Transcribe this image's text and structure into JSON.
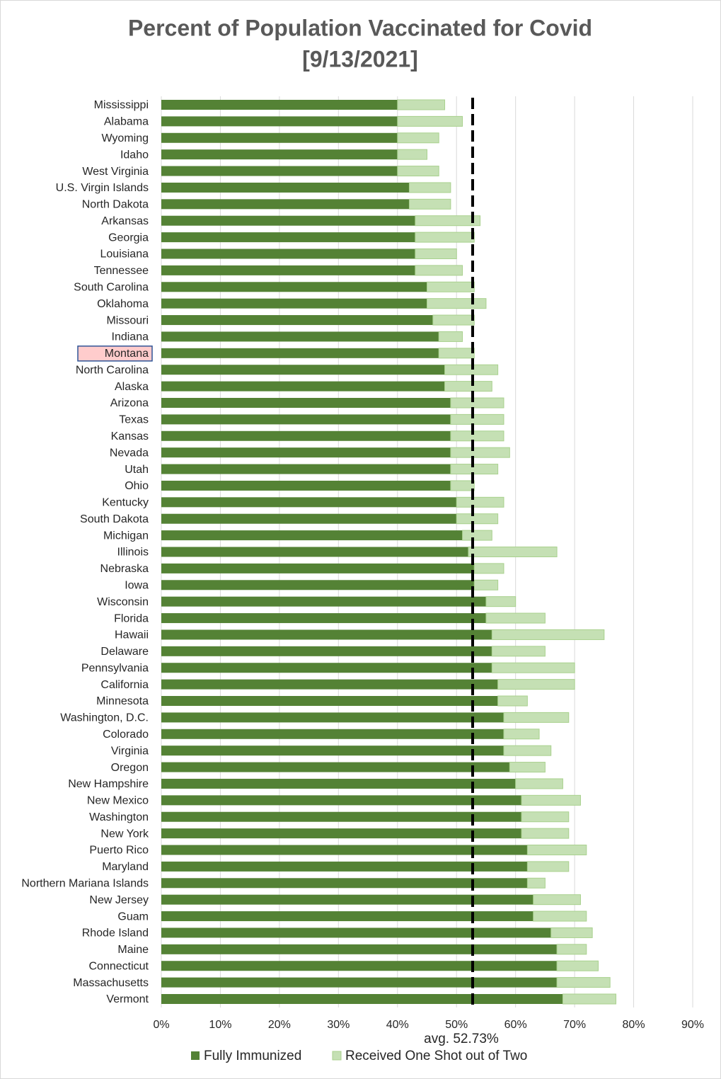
{
  "chart_data": {
    "type": "stacked_barh",
    "title": "Percent of Population Vaccinated for Covid",
    "subtitle": "[9/13/2021]",
    "categories": [
      "Mississippi",
      "Alabama",
      "Wyoming",
      "Idaho",
      "West Virginia",
      "U.S. Virgin Islands",
      "North Dakota",
      "Arkansas",
      "Georgia",
      "Louisiana",
      "Tennessee",
      "South Carolina",
      "Oklahoma",
      "Missouri",
      "Indiana",
      "Montana",
      "North Carolina",
      "Alaska",
      "Arizona",
      "Texas",
      "Kansas",
      "Nevada",
      "Utah",
      "Ohio",
      "Kentucky",
      "South Dakota",
      "Michigan",
      "Illinois",
      "Nebraska",
      "Iowa",
      "Wisconsin",
      "Florida",
      "Hawaii",
      "Delaware",
      "Pennsylvania",
      "California",
      "Minnesota",
      "Washington, D.C.",
      "Colorado",
      "Virginia",
      "Oregon",
      "New Hampshire",
      "New Mexico",
      "Washington",
      "New York",
      "Puerto Rico",
      "Maryland",
      "Northern Mariana Islands",
      "New Jersey",
      "Guam",
      "Rhode Island",
      "Maine",
      "Connecticut",
      "Massachusetts",
      "Vermont"
    ],
    "series": [
      {
        "name": "Fully Immunized",
        "color": "#548235",
        "values": [
          40,
          40,
          40,
          40,
          40,
          42,
          42,
          43,
          43,
          43,
          43,
          45,
          45,
          46,
          47,
          47,
          48,
          48,
          49,
          49,
          49,
          49,
          49,
          49,
          50,
          50,
          51,
          52,
          53,
          53,
          55,
          55,
          56,
          56,
          56,
          57,
          57,
          58,
          58,
          58,
          59,
          60,
          61,
          61,
          61,
          62,
          62,
          62,
          63,
          63,
          66,
          67,
          67,
          67,
          68
        ]
      },
      {
        "name": "Received One Shot out of Two",
        "color": "#c5e0b4",
        "values": [
          8,
          11,
          7,
          5,
          7,
          7,
          7,
          11,
          10,
          7,
          8,
          8,
          10,
          7,
          4,
          6,
          9,
          8,
          9,
          9,
          9,
          10,
          8,
          4,
          8,
          7,
          5,
          15,
          5,
          4,
          5,
          10,
          19,
          9,
          14,
          13,
          5,
          11,
          6,
          8,
          6,
          8,
          10,
          8,
          8,
          10,
          7,
          3,
          8,
          9,
          7,
          5,
          7,
          9,
          9
        ]
      }
    ],
    "xlim": [
      0,
      90
    ],
    "xticks": [
      {
        "value": 0,
        "label": "0%"
      },
      {
        "value": 10,
        "label": "10%"
      },
      {
        "value": 20,
        "label": "20%"
      },
      {
        "value": 30,
        "label": "30%"
      },
      {
        "value": 40,
        "label": "40%"
      },
      {
        "value": 50,
        "label": "50%"
      },
      {
        "value": 60,
        "label": "60%"
      },
      {
        "value": 70,
        "label": "70%"
      },
      {
        "value": 80,
        "label": "80%"
      },
      {
        "value": 90,
        "label": "90%"
      }
    ],
    "grid": true,
    "average": 52.73,
    "annotation": "avg. 52.73%",
    "highlight_category": "Montana",
    "legend": "bottom"
  }
}
